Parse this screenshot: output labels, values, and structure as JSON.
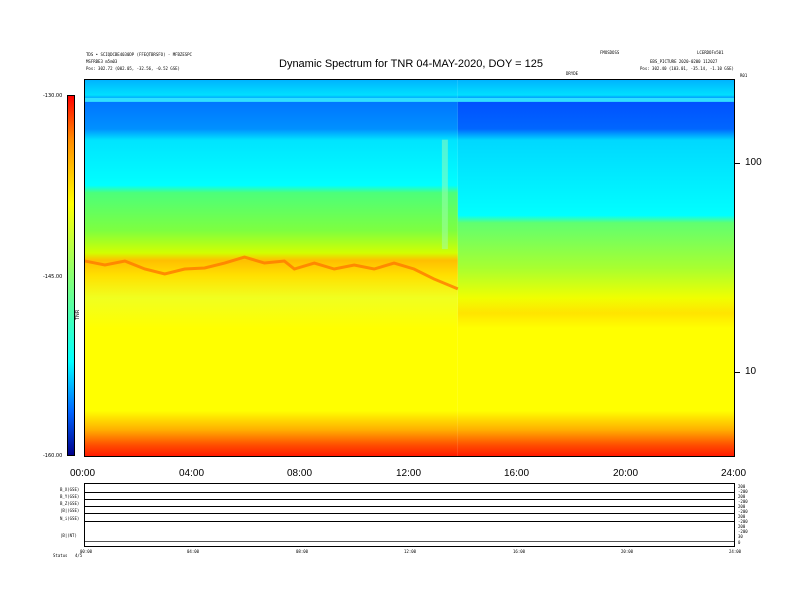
{
  "header": {
    "left_line1": "TDS • SCIQDCBE4030DP (FFEQTBRSFO) - MFBZESPC",
    "left_line2": "MSFRBE3 m5m03",
    "left_line3": "Pos:  302.72 (002.05, -32.56, -0.52 GSE)",
    "center_small": "DRYDE",
    "right_line1a": "FMOSDOSS",
    "right_line1b": "LCERDOFn501",
    "right_line2": "EBS_PICTURE 2020-0200 112027",
    "right_line3": "Pos:  302.40 (103.01, -35.14, -1.10 GSE)",
    "right_line3b": "R01"
  },
  "chart_data": {
    "type": "heatmap",
    "title": "Dynamic Spectrum for TNR 04-MAY-2020, DOY = 125",
    "x_ticks": [
      "00:00",
      "04:00",
      "08:00",
      "12:00",
      "16:00",
      "20:00",
      "24:00"
    ],
    "x_range_hours": [
      0,
      24
    ],
    "y_right_ticks": [
      "100",
      "10"
    ],
    "colorbar_ticks": [
      "-130.00",
      "-145.00",
      "-160.00"
    ],
    "colorbar_range": [
      -160,
      -130
    ],
    "colorbar_label": "TNR",
    "colormap": [
      "#ff0000",
      "#ff8a00",
      "#ffff00",
      "#7dff7d",
      "#00ffff",
      "#0064ff",
      "#00008b"
    ],
    "features": {
      "step_time_hours": 13.9,
      "blue_band_top": "present",
      "orange_ridge": "present before step"
    }
  },
  "lower_panel": {
    "row_labels": [
      "B_X(GSE)",
      "B_Y(GSE)",
      "B_Z(GSE)",
      "|B|(GSE)",
      "N_i(GSE)",
      "|B|(NT)"
    ],
    "right_labels": [
      "200",
      "-200",
      "200",
      "-200",
      "200",
      "-200",
      "200",
      "-200",
      "200",
      "-200",
      "30",
      "0"
    ],
    "x_ticks": [
      "00:00",
      "04:00",
      "08:00",
      "12:00",
      "16:00",
      "20:00",
      "24:00"
    ],
    "status_label": "Status",
    "status_value": "4/5"
  }
}
